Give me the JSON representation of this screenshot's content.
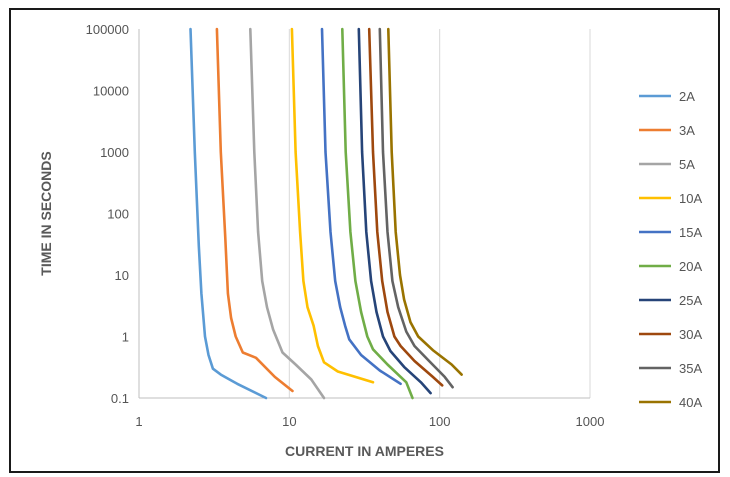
{
  "chart_data": {
    "type": "line",
    "title": "",
    "xlabel": "CURRENT IN AMPERES",
    "ylabel": "TIME IN SECONDS",
    "xscale": "log",
    "yscale": "log",
    "xlim": [
      1,
      1000
    ],
    "ylim": [
      0.1,
      100000
    ],
    "x_ticks": [
      "1",
      "10",
      "100",
      "1000"
    ],
    "y_ticks": [
      "0.1",
      "1",
      "10",
      "100",
      "1000",
      "10000",
      "100000"
    ],
    "grid": "vertical gridlines at decades",
    "legend_position": "right",
    "series": [
      {
        "name": "2A",
        "color": "#5B9BD5",
        "points": [
          [
            2.2,
            100000
          ],
          [
            2.35,
            1000
          ],
          [
            2.5,
            30
          ],
          [
            2.6,
            5
          ],
          [
            2.75,
            1
          ],
          [
            2.9,
            0.5
          ],
          [
            3.1,
            0.3
          ],
          [
            3.5,
            0.24
          ],
          [
            4.5,
            0.17
          ],
          [
            7,
            0.1
          ]
        ]
      },
      {
        "name": "3A",
        "color": "#ED7D31",
        "points": [
          [
            3.3,
            100000
          ],
          [
            3.5,
            1000
          ],
          [
            3.75,
            40
          ],
          [
            3.9,
            5
          ],
          [
            4.1,
            2
          ],
          [
            4.4,
            1
          ],
          [
            4.9,
            0.55
          ],
          [
            6,
            0.45
          ],
          [
            8,
            0.22
          ],
          [
            10.5,
            0.13
          ]
        ]
      },
      {
        "name": "5A",
        "color": "#A5A5A5",
        "points": [
          [
            5.5,
            100000
          ],
          [
            5.85,
            1000
          ],
          [
            6.2,
            50
          ],
          [
            6.6,
            8
          ],
          [
            7.1,
            3
          ],
          [
            7.8,
            1.3
          ],
          [
            9,
            0.55
          ],
          [
            11,
            0.35
          ],
          [
            14,
            0.2
          ],
          [
            17,
            0.1
          ]
        ]
      },
      {
        "name": "10A",
        "color": "#FFC000",
        "points": [
          [
            10.4,
            100000
          ],
          [
            11,
            1000
          ],
          [
            11.8,
            50
          ],
          [
            12.4,
            8
          ],
          [
            13.2,
            3
          ],
          [
            14.5,
            1.5
          ],
          [
            15.5,
            0.7
          ],
          [
            17,
            0.38
          ],
          [
            21,
            0.27
          ],
          [
            36,
            0.18
          ]
        ]
      },
      {
        "name": "15A",
        "color": "#4472C4",
        "points": [
          [
            16.5,
            100000
          ],
          [
            17.4,
            1000
          ],
          [
            18.8,
            50
          ],
          [
            20.2,
            8
          ],
          [
            21.8,
            3
          ],
          [
            23.5,
            1.5
          ],
          [
            25,
            0.9
          ],
          [
            30,
            0.5
          ],
          [
            40,
            0.28
          ],
          [
            55,
            0.17
          ]
        ]
      },
      {
        "name": "20A",
        "color": "#70AD47",
        "points": [
          [
            22.5,
            100000
          ],
          [
            23.7,
            1000
          ],
          [
            25.5,
            50
          ],
          [
            27.5,
            8
          ],
          [
            30,
            2.5
          ],
          [
            33,
            1
          ],
          [
            36,
            0.62
          ],
          [
            45,
            0.35
          ],
          [
            60,
            0.18
          ],
          [
            66,
            0.1
          ]
        ]
      },
      {
        "name": "25A",
        "color": "#264478",
        "points": [
          [
            29,
            100000
          ],
          [
            30.5,
            1000
          ],
          [
            32.5,
            50
          ],
          [
            35,
            8
          ],
          [
            38,
            2.5
          ],
          [
            42,
            1
          ],
          [
            47,
            0.58
          ],
          [
            58,
            0.32
          ],
          [
            75,
            0.18
          ],
          [
            87,
            0.12
          ]
        ]
      },
      {
        "name": "30A",
        "color": "#9E480E",
        "points": [
          [
            34,
            100000
          ],
          [
            36,
            1000
          ],
          [
            38.5,
            50
          ],
          [
            41.5,
            8
          ],
          [
            45,
            2.5
          ],
          [
            50,
            1
          ],
          [
            55,
            0.7
          ],
          [
            68,
            0.4
          ],
          [
            90,
            0.22
          ],
          [
            104,
            0.16
          ]
        ]
      },
      {
        "name": "35A",
        "color": "#636363",
        "points": [
          [
            40,
            100000
          ],
          [
            42,
            1000
          ],
          [
            45,
            50
          ],
          [
            48.5,
            8
          ],
          [
            53,
            3
          ],
          [
            60,
            1.2
          ],
          [
            68,
            0.7
          ],
          [
            85,
            0.4
          ],
          [
            108,
            0.22
          ],
          [
            122,
            0.15
          ]
        ]
      },
      {
        "name": "40A",
        "color": "#997300",
        "points": [
          [
            45.5,
            100000
          ],
          [
            48,
            1000
          ],
          [
            51,
            50
          ],
          [
            54.5,
            10
          ],
          [
            58,
            4
          ],
          [
            64,
            1.7
          ],
          [
            72,
            1
          ],
          [
            90,
            0.6
          ],
          [
            120,
            0.35
          ],
          [
            140,
            0.24
          ]
        ]
      }
    ]
  }
}
